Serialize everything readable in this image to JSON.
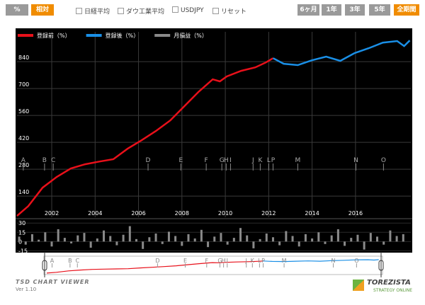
{
  "toolbar": {
    "left": [
      "%",
      "相対"
    ],
    "overlays": [
      "日経平均",
      "ダウ工業平均",
      "USDJPY",
      "リセット"
    ],
    "ranges": [
      "6ヶ月",
      "1年",
      "3年",
      "5年",
      "全期間"
    ]
  },
  "footer": {
    "app": "TSD CHART VIEWER",
    "version": "Ver 1.10",
    "logo": "TOREZISTA",
    "logo_sub": "STRATEGY ONLINE"
  },
  "chart_data": [
    {
      "type": "line",
      "grid": true,
      "legend": "top-left",
      "xlim": [
        2000.4,
        2018.55
      ],
      "xticks": [
        2002,
        2004,
        2006,
        2008,
        2010,
        2012,
        2014,
        2016
      ],
      "ylim": [
        30,
        995
      ],
      "yticks": [
        140,
        280,
        420,
        560,
        700,
        840
      ],
      "series": [
        {
          "name": "登録前（%）",
          "color": "#e8101a",
          "x": [
            2000.4,
            2000.92,
            2001.58,
            2002.23,
            2002.88,
            2003.54,
            2004.19,
            2004.84,
            2005.5,
            2006.15,
            2006.8,
            2007.46,
            2008.11,
            2008.76,
            2009.42,
            2009.75,
            2010.07,
            2010.73,
            2011.38,
            2011.87,
            2012.2
          ],
          "values": [
            37,
            88,
            184,
            240,
            284,
            306,
            320,
            332,
            387,
            431,
            479,
            534,
            608,
            682,
            748,
            737,
            763,
            792,
            810,
            836,
            858
          ]
        },
        {
          "name": "登録後（%）",
          "color": "#1a8fe6",
          "x": [
            2012.2,
            2012.69,
            2013.34,
            2013.99,
            2014.65,
            2015.3,
            2015.95,
            2016.61,
            2017.26,
            2017.92,
            2018.24,
            2018.5
          ],
          "values": [
            858,
            829,
            822,
            847,
            866,
            844,
            884,
            910,
            939,
            947,
            921,
            950
          ]
        }
      ],
      "annotations": [
        {
          "text": "A",
          "x": 2000.69
        },
        {
          "text": "B",
          "x": 2001.67
        },
        {
          "text": "C",
          "x": 2002.07
        },
        {
          "text": "D",
          "x": 2006.44
        },
        {
          "text": "E",
          "x": 2007.95
        },
        {
          "text": "F",
          "x": 2009.12
        },
        {
          "text": "G",
          "x": 2009.84
        },
        {
          "text": "H",
          "x": 2010.04
        },
        {
          "text": "I",
          "x": 2010.24
        },
        {
          "text": "J",
          "x": 2011.28
        },
        {
          "text": "K",
          "x": 2011.61
        },
        {
          "text": "L",
          "x": 2012.0
        },
        {
          "text": "P",
          "x": 2012.2
        },
        {
          "text": "M",
          "x": 2013.34
        },
        {
          "text": "N",
          "x": 2016.02
        },
        {
          "text": "O",
          "x": 2017.29
        }
      ]
    },
    {
      "type": "bar",
      "xlim": [
        2000.4,
        2018.55
      ],
      "ylim": [
        -18,
        36
      ],
      "yticks": [
        30,
        15,
        0,
        -15
      ],
      "series": [
        {
          "name": "月損益（%）",
          "color": "#8a8a8a",
          "x": [
            2000.5,
            2000.8,
            2001.1,
            2001.4,
            2001.7,
            2002,
            2002.3,
            2002.6,
            2002.9,
            2003.2,
            2003.5,
            2003.8,
            2004.1,
            2004.4,
            2004.7,
            2005,
            2005.3,
            2005.6,
            2005.9,
            2006.2,
            2006.5,
            2006.8,
            2007.1,
            2007.4,
            2007.7,
            2008,
            2008.3,
            2008.6,
            2008.9,
            2009.2,
            2009.5,
            2009.8,
            2010.1,
            2010.4,
            2010.7,
            2011,
            2011.3,
            2011.6,
            2011.9,
            2012.2,
            2012.5,
            2012.8,
            2013.1,
            2013.4,
            2013.7,
            2014,
            2014.3,
            2014.6,
            2014.9,
            2015.2,
            2015.5,
            2015.8,
            2016.1,
            2016.4,
            2016.7,
            2017,
            2017.3,
            2017.6,
            2017.9,
            2018.2
          ],
          "values": [
            8,
            -5,
            12,
            3,
            15,
            -8,
            20,
            6,
            -3,
            10,
            14,
            -10,
            5,
            18,
            9,
            -6,
            11,
            25,
            4,
            -12,
            7,
            13,
            -4,
            16,
            9,
            -7,
            12,
            5,
            19,
            -9,
            8,
            14,
            -5,
            6,
            22,
            10,
            -11,
            4,
            13,
            7,
            -6,
            17,
            9,
            -8,
            12,
            5,
            15,
            -4,
            10,
            20,
            -7,
            6,
            11,
            -13,
            14,
            8,
            -5,
            18,
            9,
            12
          ]
        }
      ]
    }
  ]
}
